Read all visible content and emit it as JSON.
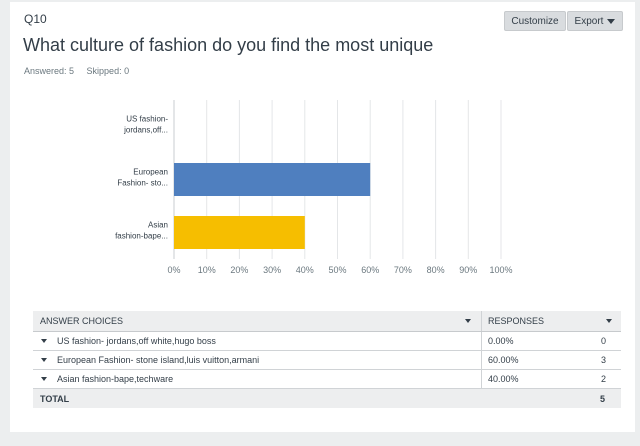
{
  "question": {
    "number": "Q10",
    "title": "What culture of fashion do you find the most unique",
    "answered": "Answered: 5",
    "skipped": "Skipped: 0"
  },
  "toolbar": {
    "customize_label": "Customize",
    "export_label": "Export"
  },
  "chart_data": {
    "type": "bar",
    "orientation": "horizontal",
    "categories": [
      [
        "US fashion-",
        "jordans,off..."
      ],
      [
        "European",
        "Fashion- sto..."
      ],
      [
        "Asian",
        "fashion-bape..."
      ]
    ],
    "values": [
      0,
      60,
      40
    ],
    "colors": [
      "#4f7fbf",
      "#4f7fbf",
      "#f6be00"
    ],
    "xlim": [
      0,
      100
    ],
    "xticks": [
      "0%",
      "10%",
      "20%",
      "30%",
      "40%",
      "50%",
      "60%",
      "70%",
      "80%",
      "90%",
      "100%"
    ],
    "grid": true
  },
  "table": {
    "headers": {
      "choices": "ANSWER CHOICES",
      "responses": "RESPONSES"
    },
    "rows": [
      {
        "choice": "US fashion- jordans,off white,hugo boss",
        "percent": "0.00%",
        "count": "0"
      },
      {
        "choice": "European Fashion- stone island,luis vuitton,armani",
        "percent": "60.00%",
        "count": "3"
      },
      {
        "choice": "Asian fashion-bape,techware",
        "percent": "40.00%",
        "count": "2"
      }
    ],
    "total": {
      "label": "TOTAL",
      "count": "5"
    }
  }
}
